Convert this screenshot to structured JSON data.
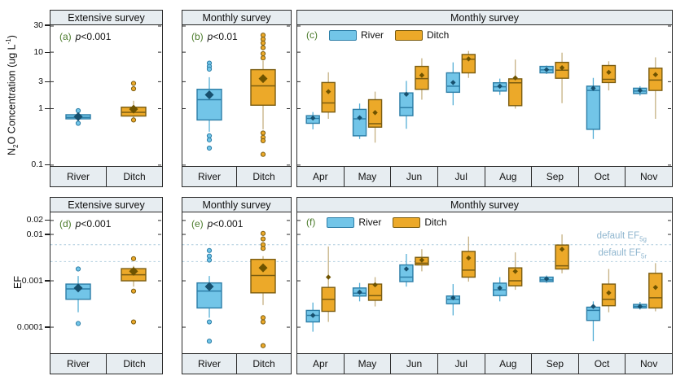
{
  "styles": {
    "river_fill": "#72C5E8",
    "river_stroke": "#2D7EA7",
    "river_whisker": "#55AFD6",
    "river_mean": "#17506E",
    "ditch_fill": "#ECA929",
    "ditch_stroke": "#7A5C10",
    "ditch_whisker": "#C6B183",
    "ditch_mean": "#6E5300",
    "strip_bg": "#E7EDF1",
    "border": "#2B2B2B",
    "ref_line": "#B3CFE0",
    "ref_label": "#8FB6CF",
    "letter_color": "#4A7A2A"
  },
  "p_symbol": "p",
  "legend": {
    "river_label": "River",
    "ditch_label": "Ditch"
  },
  "y_axis_conc": {
    "pre": "N",
    "sub": "2",
    "mid": "O Concentration (ug L",
    "sup": "-1",
    "post": ")",
    "scale": "log",
    "range": [
      0.0963,
      30
    ],
    "ticks": [
      [
        "30",
        30
      ],
      [
        "10",
        10
      ],
      [
        "3",
        3
      ],
      [
        "1",
        1
      ],
      [
        "0.1",
        0.1
      ]
    ]
  },
  "y_axis_ef": {
    "label": "EF",
    "scale": "log",
    "range": [
      2.75e-05,
      0.0298
    ],
    "ticks": [
      [
        "0.02",
        0.02
      ],
      [
        "0.01",
        0.01
      ],
      [
        "0.001",
        0.001
      ],
      [
        "0.0001",
        0.0001
      ]
    ]
  },
  "ref_lines": [
    {
      "value": 0.006,
      "pre": "default EF",
      "sub": "5g"
    },
    {
      "value": 0.0026,
      "pre": "default EF",
      "sub": "5r"
    }
  ],
  "chart_data": [
    {
      "id": "a",
      "type": "box",
      "letter": "(a)",
      "p_value": "<0.001",
      "header": "Extensive survey",
      "axis": "conc",
      "categories": [
        "River",
        "Ditch"
      ],
      "paired": false,
      "boxes": [
        {
          "cat": "River",
          "series": "river",
          "wlo": 0.6,
          "q1": 0.66,
          "med": 0.7,
          "q3": 0.78,
          "whi": 0.85,
          "mean": 0.72,
          "out": [
            0.92,
            0.55
          ]
        },
        {
          "cat": "Ditch",
          "series": "ditch",
          "wlo": 0.66,
          "q1": 0.74,
          "med": 0.86,
          "q3": 1.06,
          "whi": 1.38,
          "mean": 0.98,
          "out": [
            2.8,
            2.25,
            0.63
          ]
        }
      ]
    },
    {
      "id": "b",
      "type": "box",
      "letter": "(b)",
      "p_value": "<0.01",
      "header": "Monthly survey",
      "axis": "conc",
      "categories": [
        "River",
        "Ditch"
      ],
      "paired": false,
      "boxes": [
        {
          "cat": "River",
          "series": "river",
          "wlo": 0.39,
          "q1": 0.63,
          "med": 1.44,
          "q3": 2.2,
          "whi": 3.6,
          "mean": 1.76,
          "out": [
            6.4,
            5.6,
            5.0,
            0.33,
            0.28,
            0.2
          ]
        },
        {
          "cat": "Ditch",
          "series": "ditch",
          "wlo": 0.43,
          "q1": 1.15,
          "med": 2.53,
          "q3": 4.9,
          "whi": 7.0,
          "mean": 3.4,
          "out": [
            20,
            17,
            14.5,
            12,
            9.4,
            7.9,
            0.37,
            0.31,
            0.27,
            0.155
          ]
        }
      ]
    },
    {
      "id": "c",
      "type": "box",
      "letter": "(c)",
      "p_value": "",
      "header": "Monthly survey",
      "axis": "conc",
      "categories": [
        "Apr",
        "May",
        "Jun",
        "Jul",
        "Aug",
        "Sep",
        "Oct",
        "Nov"
      ],
      "paired": true,
      "legend": true,
      "boxes": [
        {
          "cat": "Apr",
          "series": "river",
          "wlo": 0.43,
          "q1": 0.55,
          "med": 0.67,
          "q3": 0.75,
          "whi": 0.87,
          "mean": 0.68,
          "out": []
        },
        {
          "cat": "Apr",
          "series": "ditch",
          "wlo": 0.66,
          "q1": 0.87,
          "med": 1.26,
          "q3": 2.9,
          "whi": 4.4,
          "mean": 2.0,
          "out": []
        },
        {
          "cat": "May",
          "series": "river",
          "wlo": 0.29,
          "q1": 0.33,
          "med": 0.66,
          "q3": 0.97,
          "whi": 1.23,
          "mean": 0.69,
          "out": []
        },
        {
          "cat": "May",
          "series": "ditch",
          "wlo": 0.25,
          "q1": 0.47,
          "med": 0.54,
          "q3": 1.44,
          "whi": 2.0,
          "mean": 0.85,
          "out": []
        },
        {
          "cat": "Jun",
          "series": "river",
          "wlo": 0.44,
          "q1": 0.75,
          "med": 1.04,
          "q3": 1.9,
          "whi": 3.1,
          "mean": 1.8,
          "out": []
        },
        {
          "cat": "Jun",
          "series": "ditch",
          "wlo": 1.44,
          "q1": 2.2,
          "med": 3.4,
          "q3": 5.6,
          "whi": 7.8,
          "mean": 3.9,
          "out": []
        },
        {
          "cat": "Jul",
          "series": "river",
          "wlo": 1.15,
          "q1": 1.95,
          "med": 2.5,
          "q3": 4.3,
          "whi": 6.6,
          "mean": 2.9,
          "out": []
        },
        {
          "cat": "Jul",
          "series": "ditch",
          "wlo": 3.5,
          "q1": 4.3,
          "med": 7.5,
          "q3": 9.1,
          "whi": 10.5,
          "mean": 7.6,
          "out": []
        },
        {
          "cat": "Aug",
          "series": "river",
          "wlo": 1.75,
          "q1": 2.05,
          "med": 2.44,
          "q3": 2.87,
          "whi": 3.4,
          "mean": 2.5,
          "out": []
        },
        {
          "cat": "Aug",
          "series": "ditch",
          "wlo": 1.0,
          "q1": 1.13,
          "med": 2.87,
          "q3": 3.37,
          "whi": 7.4,
          "mean": 3.5,
          "out": []
        },
        {
          "cat": "Sep",
          "series": "river",
          "wlo": 4.1,
          "q1": 4.3,
          "med": 4.85,
          "q3": 5.6,
          "whi": 5.8,
          "mean": 4.9,
          "out": []
        },
        {
          "cat": "Sep",
          "series": "ditch",
          "wlo": 1.25,
          "q1": 3.45,
          "med": 4.8,
          "q3": 6.6,
          "whi": 9.8,
          "mean": 5.3,
          "out": []
        },
        {
          "cat": "Oct",
          "series": "river",
          "wlo": 0.29,
          "q1": 0.43,
          "med": 2.1,
          "q3": 2.5,
          "whi": 3.5,
          "mean": 2.3,
          "out": []
        },
        {
          "cat": "Oct",
          "series": "ditch",
          "wlo": 2.1,
          "q1": 2.9,
          "med": 3.3,
          "q3": 5.8,
          "whi": 6.9,
          "mean": 4.4,
          "out": []
        },
        {
          "cat": "Nov",
          "series": "river",
          "wlo": 1.7,
          "q1": 1.85,
          "med": 2.05,
          "q3": 2.3,
          "whi": 2.5,
          "mean": 2.1,
          "out": []
        },
        {
          "cat": "Nov",
          "series": "ditch",
          "wlo": 0.66,
          "q1": 2.1,
          "med": 3.2,
          "q3": 5.2,
          "whi": 8.1,
          "mean": 4.0,
          "out": []
        }
      ]
    },
    {
      "id": "d",
      "type": "box",
      "letter": "(d)",
      "p_value": "<0.001",
      "header": "Extensive survey",
      "axis": "ef",
      "categories": [
        "River",
        "Ditch"
      ],
      "paired": false,
      "boxes": [
        {
          "cat": "River",
          "series": "river",
          "wlo": 0.00021,
          "q1": 0.0004,
          "med": 0.00067,
          "q3": 0.00085,
          "whi": 0.00127,
          "mean": 0.0007,
          "out": [
            0.0018,
            0.00012
          ]
        },
        {
          "cat": "Ditch",
          "series": "ditch",
          "wlo": 0.00075,
          "q1": 0.001,
          "med": 0.00135,
          "q3": 0.00183,
          "whi": 0.0021,
          "mean": 0.0016,
          "out": [
            0.003,
            0.0006,
            0.00013
          ]
        }
      ]
    },
    {
      "id": "e",
      "type": "box",
      "letter": "(e)",
      "p_value": "<0.001",
      "header": "Monthly survey",
      "axis": "ef",
      "categories": [
        "River",
        "Ditch"
      ],
      "paired": false,
      "boxes": [
        {
          "cat": "River",
          "series": "river",
          "wlo": 0.00016,
          "q1": 0.00026,
          "med": 0.0006,
          "q3": 0.0009,
          "whi": 0.00127,
          "mean": 0.00075,
          "out": [
            0.0045,
            0.0034,
            0.0028,
            0.00013,
            5e-05
          ]
        },
        {
          "cat": "Ditch",
          "series": "ditch",
          "wlo": 0.0003,
          "q1": 0.00055,
          "med": 0.0013,
          "q3": 0.0029,
          "whi": 0.0034,
          "mean": 0.0019,
          "out": [
            0.0105,
            0.008,
            0.006,
            0.005,
            0.00016,
            0.00013,
            4e-05
          ]
        }
      ]
    },
    {
      "id": "f",
      "type": "box",
      "letter": "(f)",
      "p_value": "",
      "header": "Monthly survey",
      "axis": "ef",
      "categories": [
        "Apr",
        "May",
        "Jun",
        "Jul",
        "Aug",
        "Sep",
        "Oct",
        "Nov"
      ],
      "paired": true,
      "legend": true,
      "boxes": [
        {
          "cat": "Apr",
          "series": "river",
          "wlo": 8e-05,
          "q1": 0.00013,
          "med": 0.00018,
          "q3": 0.00023,
          "whi": 0.00034,
          "mean": 0.00018,
          "out": []
        },
        {
          "cat": "Apr",
          "series": "ditch",
          "wlo": 0.00013,
          "q1": 0.00022,
          "med": 0.0004,
          "q3": 0.00072,
          "whi": 0.0055,
          "mean": 0.0012,
          "out": []
        },
        {
          "cat": "May",
          "series": "river",
          "wlo": 0.00036,
          "q1": 0.00047,
          "med": 0.00054,
          "q3": 0.0007,
          "whi": 0.0009,
          "mean": 0.00057,
          "out": []
        },
        {
          "cat": "May",
          "series": "ditch",
          "wlo": 0.00028,
          "q1": 0.00038,
          "med": 0.00048,
          "q3": 0.00085,
          "whi": 0.0012,
          "mean": 0.00082,
          "out": []
        },
        {
          "cat": "Jun",
          "series": "river",
          "wlo": 0.00075,
          "q1": 0.00096,
          "med": 0.0012,
          "q3": 0.0022,
          "whi": 0.0038,
          "mean": 0.0018,
          "out": []
        },
        {
          "cat": "Jun",
          "series": "ditch",
          "wlo": 0.0016,
          "q1": 0.0022,
          "med": 0.0024,
          "q3": 0.0032,
          "whi": 0.0048,
          "mean": 0.0028,
          "out": []
        },
        {
          "cat": "Jul",
          "series": "river",
          "wlo": 0.00018,
          "q1": 0.00032,
          "med": 0.0004,
          "q3": 0.00047,
          "whi": 0.00085,
          "mean": 0.00043,
          "out": []
        },
        {
          "cat": "Jul",
          "series": "ditch",
          "wlo": 0.00096,
          "q1": 0.0012,
          "med": 0.0017,
          "q3": 0.0043,
          "whi": 0.009,
          "mean": 0.0031,
          "out": []
        },
        {
          "cat": "Aug",
          "series": "river",
          "wlo": 0.00036,
          "q1": 0.00048,
          "med": 0.00064,
          "q3": 0.00089,
          "whi": 0.0012,
          "mean": 0.0007,
          "out": []
        },
        {
          "cat": "Aug",
          "series": "ditch",
          "wlo": 0.00064,
          "q1": 0.00078,
          "med": 0.001,
          "q3": 0.0019,
          "whi": 0.0041,
          "mean": 0.0016,
          "out": []
        },
        {
          "cat": "Sep",
          "series": "river",
          "wlo": 0.0009,
          "q1": 0.00096,
          "med": 0.00105,
          "q3": 0.0012,
          "whi": 0.0013,
          "mean": 0.0011,
          "out": []
        },
        {
          "cat": "Sep",
          "series": "ditch",
          "wlo": 0.00145,
          "q1": 0.0018,
          "med": 0.0021,
          "q3": 0.0059,
          "whi": 0.01,
          "mean": 0.0048,
          "out": []
        },
        {
          "cat": "Oct",
          "series": "river",
          "wlo": 5e-05,
          "q1": 0.00014,
          "med": 0.00023,
          "q3": 0.00027,
          "whi": 0.00036,
          "mean": 0.00028,
          "out": []
        },
        {
          "cat": "Oct",
          "series": "ditch",
          "wlo": 0.00021,
          "q1": 0.00029,
          "med": 0.0004,
          "q3": 0.00085,
          "whi": 0.0018,
          "mean": 0.00055,
          "out": []
        },
        {
          "cat": "Nov",
          "series": "river",
          "wlo": 0.00024,
          "q1": 0.00026,
          "med": 0.00028,
          "q3": 0.00031,
          "whi": 0.00035,
          "mean": 0.00028,
          "out": []
        },
        {
          "cat": "Nov",
          "series": "ditch",
          "wlo": 0.00022,
          "q1": 0.00026,
          "med": 0.00043,
          "q3": 0.00145,
          "whi": 0.0024,
          "mean": 0.00072,
          "out": []
        }
      ]
    }
  ]
}
